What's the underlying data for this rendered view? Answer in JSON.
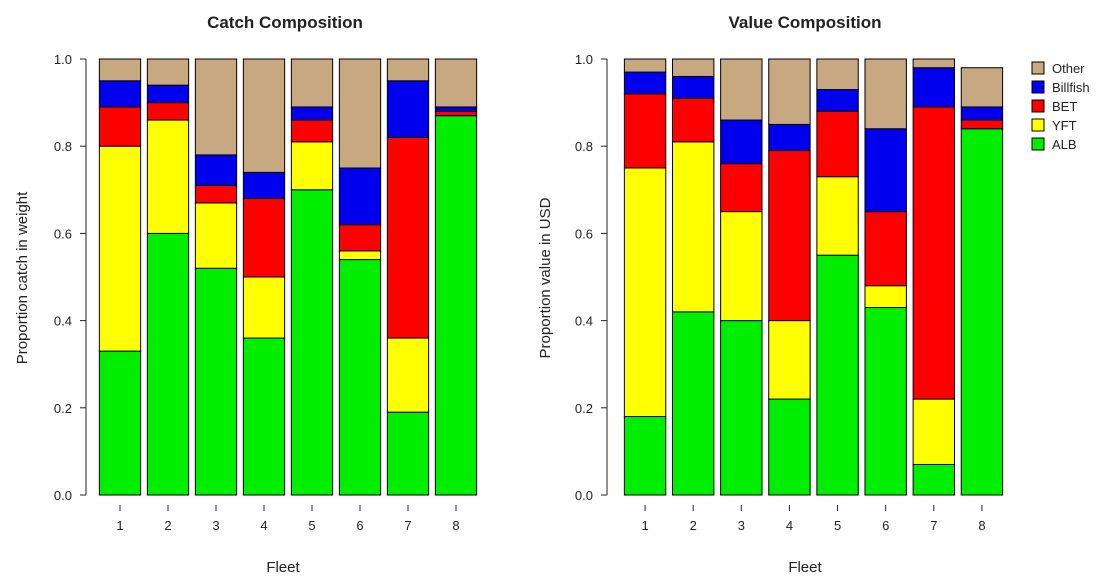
{
  "chart_data": [
    {
      "type": "bar",
      "stacked": true,
      "title": "Catch Composition",
      "xlabel": "Fleet",
      "ylabel": "Proportion catch in weight",
      "ylim": [
        0,
        1
      ],
      "yticks": [
        "0.0",
        "0.2",
        "0.4",
        "0.6",
        "0.8",
        "1.0"
      ],
      "categories": [
        "1",
        "2",
        "3",
        "4",
        "5",
        "6",
        "7",
        "8"
      ],
      "series": [
        {
          "name": "ALB",
          "color": "#00ee00",
          "values": [
            0.33,
            0.6,
            0.52,
            0.36,
            0.7,
            0.54,
            0.19,
            0.87
          ]
        },
        {
          "name": "YFT",
          "color": "#ffff00",
          "values": [
            0.47,
            0.26,
            0.15,
            0.14,
            0.11,
            0.02,
            0.17,
            0.0
          ]
        },
        {
          "name": "BET",
          "color": "#ff0000",
          "values": [
            0.09,
            0.04,
            0.04,
            0.18,
            0.05,
            0.06,
            0.46,
            0.01
          ]
        },
        {
          "name": "Billfish",
          "color": "#0000ee",
          "values": [
            0.06,
            0.04,
            0.07,
            0.06,
            0.03,
            0.13,
            0.13,
            0.01
          ]
        },
        {
          "name": "Other",
          "color": "#c8a880",
          "values": [
            0.05,
            0.06,
            0.22,
            0.26,
            0.11,
            0.25,
            0.05,
            0.11
          ]
        }
      ]
    },
    {
      "type": "bar",
      "stacked": true,
      "title": "Value Composition",
      "xlabel": "Fleet",
      "ylabel": "Proportion value in USD",
      "ylim": [
        0,
        1
      ],
      "yticks": [
        "0.0",
        "0.2",
        "0.4",
        "0.6",
        "0.8",
        "1.0"
      ],
      "categories": [
        "1",
        "2",
        "3",
        "4",
        "5",
        "6",
        "7",
        "8"
      ],
      "series": [
        {
          "name": "ALB",
          "color": "#00ee00",
          "values": [
            0.18,
            0.42,
            0.4,
            0.22,
            0.55,
            0.43,
            0.07,
            0.84
          ]
        },
        {
          "name": "YFT",
          "color": "#ffff00",
          "values": [
            0.57,
            0.39,
            0.25,
            0.18,
            0.18,
            0.05,
            0.15,
            0.0
          ]
        },
        {
          "name": "BET",
          "color": "#ff0000",
          "values": [
            0.17,
            0.1,
            0.11,
            0.39,
            0.15,
            0.17,
            0.67,
            0.02
          ]
        },
        {
          "name": "Billfish",
          "color": "#0000ee",
          "values": [
            0.05,
            0.05,
            0.1,
            0.06,
            0.05,
            0.19,
            0.09,
            0.03
          ]
        },
        {
          "name": "Other",
          "color": "#c8a880",
          "values": [
            0.03,
            0.04,
            0.14,
            0.15,
            0.07,
            0.16,
            0.02,
            0.09
          ]
        }
      ]
    }
  ],
  "legend": {
    "placement": "top-right",
    "items": [
      {
        "label": "Other",
        "color": "#c8a880"
      },
      {
        "label": "Billfish",
        "color": "#0000ee"
      },
      {
        "label": "BET",
        "color": "#ff0000"
      },
      {
        "label": "YFT",
        "color": "#ffff00"
      },
      {
        "label": "ALB",
        "color": "#00ee00"
      }
    ]
  }
}
